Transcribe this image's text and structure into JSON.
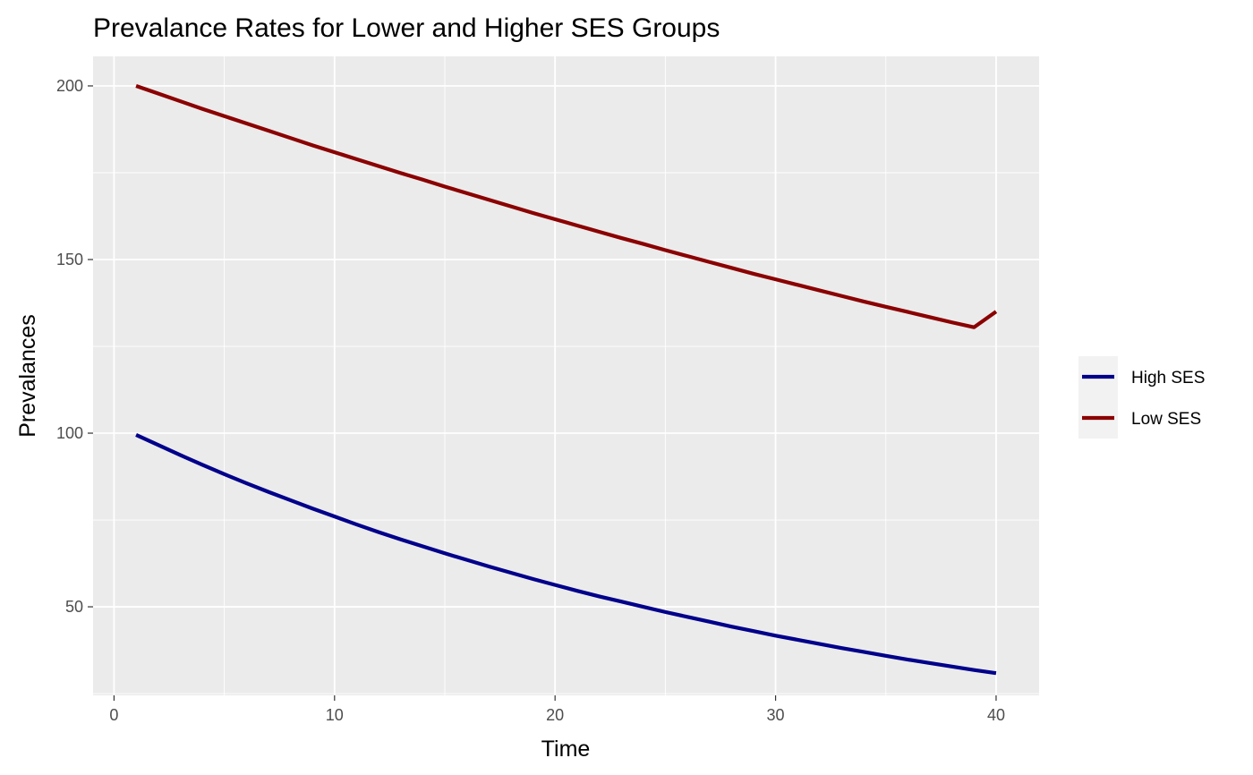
{
  "chart_data": {
    "type": "line",
    "title": "Prevalance Rates for Lower and Higher SES Groups",
    "xlabel": "Time",
    "ylabel": "Prevalances",
    "xlim": [
      -0.95,
      41.95
    ],
    "ylim": [
      24.5,
      208.5
    ],
    "x_ticks": [
      0,
      10,
      20,
      30,
      40
    ],
    "x_tick_labels": [
      "0",
      "10",
      "20",
      "30",
      "40"
    ],
    "y_ticks": [
      50,
      100,
      150,
      200
    ],
    "y_tick_labels": [
      "50",
      "100",
      "150",
      "200"
    ],
    "grid": true,
    "legend_position": "right",
    "series": [
      {
        "name": "High SES",
        "color": "#00008B",
        "x": [
          1,
          2,
          3,
          4,
          5,
          6,
          7,
          8,
          9,
          10,
          11,
          12,
          13,
          14,
          15,
          16,
          17,
          18,
          19,
          20,
          21,
          22,
          23,
          24,
          25,
          26,
          27,
          28,
          29,
          30,
          31,
          32,
          33,
          34,
          35,
          36,
          37,
          38,
          39,
          40
        ],
        "values": [
          99.5,
          96.6,
          93.7,
          90.9,
          88.2,
          85.6,
          83.1,
          80.7,
          78.3,
          76.0,
          73.7,
          71.5,
          69.4,
          67.4,
          65.4,
          63.5,
          61.6,
          59.8,
          58.0,
          56.3,
          54.6,
          53.0,
          51.5,
          50.0,
          48.5,
          47.1,
          45.7,
          44.3,
          43.0,
          41.7,
          40.5,
          39.3,
          38.1,
          37.0,
          35.9,
          34.8,
          33.8,
          32.8,
          31.8,
          30.9
        ]
      },
      {
        "name": "Low SES",
        "color": "#8B0000",
        "x": [
          1,
          2,
          3,
          4,
          5,
          6,
          7,
          8,
          9,
          10,
          11,
          12,
          13,
          14,
          15,
          16,
          17,
          18,
          19,
          20,
          21,
          22,
          23,
          24,
          25,
          26,
          27,
          28,
          29,
          30,
          31,
          32,
          33,
          34,
          35,
          36,
          37,
          38,
          39,
          40
        ],
        "values": [
          200.0,
          197.8,
          195.6,
          193.4,
          191.3,
          189.2,
          187.1,
          185.0,
          182.9,
          180.9,
          178.9,
          176.9,
          174.9,
          173.0,
          171.0,
          169.1,
          167.2,
          165.3,
          163.4,
          161.6,
          159.8,
          158.0,
          156.2,
          154.5,
          152.7,
          151.0,
          149.3,
          147.6,
          145.9,
          144.3,
          142.7,
          141.1,
          139.5,
          137.9,
          136.4,
          134.9,
          133.4,
          131.9,
          130.5,
          135.0
        ]
      }
    ]
  }
}
